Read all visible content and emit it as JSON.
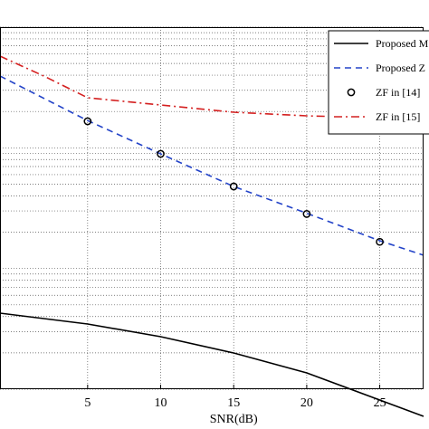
{
  "chart_data": {
    "type": "line",
    "xlabel": "SNR(dB)",
    "ylabel": "",
    "title": "",
    "xlim": [
      -1,
      28
    ],
    "xticks": [
      5,
      10,
      15,
      20,
      25
    ],
    "ylim": [
      0,
      1
    ],
    "yscale": "log",
    "grid": true,
    "legend_position": "top-right",
    "series": [
      {
        "name": "Proposed M",
        "style": "solid",
        "color": "#000000",
        "x": [
          -1,
          5,
          10,
          15,
          20,
          25,
          28
        ],
        "y": [
          0.21,
          0.18,
          0.145,
          0.1,
          0.045,
          -0.03,
          -0.075
        ]
      },
      {
        "name": "Proposed Z",
        "style": "dashed",
        "color": "#2343c8",
        "x": [
          -1,
          5,
          10,
          15,
          20,
          25,
          28
        ],
        "y": [
          0.865,
          0.742,
          0.65,
          0.56,
          0.486,
          0.41,
          0.37
        ]
      },
      {
        "name": "ZF in [14]",
        "style": "marker",
        "color": "#000000",
        "x": [
          5,
          10,
          15,
          20,
          25
        ],
        "y": [
          0.74,
          0.65,
          0.56,
          0.484,
          0.407
        ]
      },
      {
        "name": "ZF in [15]",
        "style": "dashdot",
        "color": "#d42020",
        "x": [
          -1,
          2,
          5,
          10,
          15,
          20,
          25,
          28
        ],
        "y": [
          0.92,
          0.865,
          0.805,
          0.785,
          0.765,
          0.755,
          0.75,
          0.748
        ]
      }
    ]
  }
}
